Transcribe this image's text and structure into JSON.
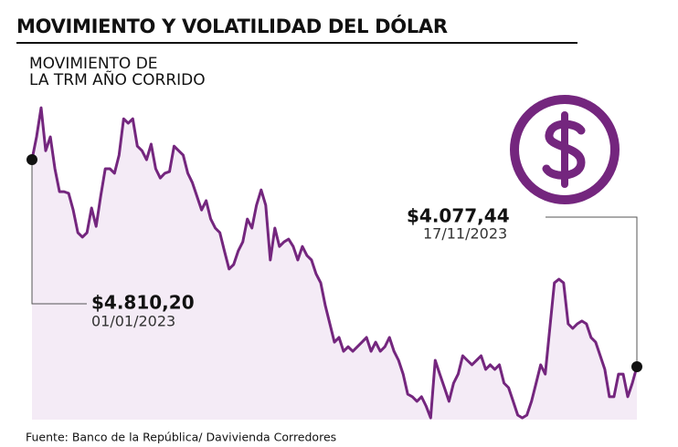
{
  "chart_data": {
    "type": "line",
    "title": "MOVIMIENTO Y VOLATILIDAD DEL DÓLAR",
    "subtitle": [
      "MOVIMIENTO DE",
      "LA TRM AÑO CORRIDO"
    ],
    "source": "Fuente: Banco de la República/ Davivienda Corredores",
    "color": "#74267e",
    "fill_color": "#f4ebf6",
    "ylim": [
      3890,
      5004
    ],
    "values": [
      4810.2,
      4891,
      4994,
      4842,
      4891,
      4778,
      4697,
      4697,
      4691,
      4632,
      4552,
      4536,
      4552,
      4639,
      4574,
      4681,
      4778,
      4778,
      4762,
      4826,
      4955,
      4939,
      4955,
      4858,
      4842,
      4810,
      4865,
      4778,
      4745,
      4762,
      4768,
      4858,
      4842,
      4826,
      4762,
      4729,
      4681,
      4632,
      4665,
      4600,
      4568,
      4552,
      4487,
      4423,
      4439,
      4487,
      4519,
      4600,
      4568,
      4649,
      4703,
      4649,
      4455,
      4568,
      4503,
      4519,
      4529,
      4503,
      4455,
      4503,
      4471,
      4455,
      4406,
      4374,
      4294,
      4229,
      4164,
      4181,
      4132,
      4148,
      4132,
      4148,
      4164,
      4181,
      4132,
      4164,
      4132,
      4148,
      4181,
      4132,
      4100,
      4051,
      3980,
      3971,
      3955,
      3971,
      3938,
      3896,
      4100,
      4051,
      4003,
      3955,
      4019,
      4051,
      4116,
      4100,
      4084,
      4100,
      4116,
      4068,
      4084,
      4068,
      4084,
      4019,
      4003,
      3955,
      3906,
      3896,
      3906,
      3955,
      4019,
      4084,
      4051,
      4213,
      4374,
      4387,
      4374,
      4229,
      4213,
      4229,
      4239,
      4229,
      4181,
      4164,
      4116,
      4068,
      3971,
      3971,
      4051,
      4051,
      3971,
      4019,
      4077.44
    ],
    "annotations": [
      {
        "text": "$4.810,20",
        "date": "01/01/2023"
      },
      {
        "text": "$4.077,44",
        "date": "17/11/2023"
      }
    ]
  }
}
